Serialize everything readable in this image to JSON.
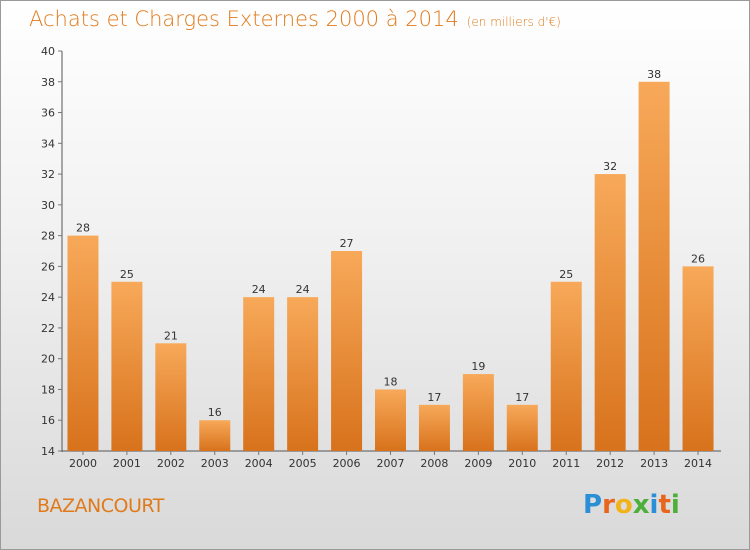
{
  "header": {
    "title": "Achats et Charges Externes 2000 à 2014",
    "unit": "(en milliers d'€)"
  },
  "footer": {
    "town": "BAZANCOURT",
    "logo_letters": [
      "P",
      "r",
      "o",
      "x",
      "i",
      "t",
      "i"
    ],
    "logo_colors": [
      "#2a8fd4",
      "#e8651d",
      "#f2b21a",
      "#4caf3a",
      "#2a8fd4",
      "#e8651d",
      "#4caf3a"
    ]
  },
  "colors": {
    "bar_top": "#f7a959",
    "bar_bottom": "#d8721c",
    "axis": "#555555",
    "grid_tick": "#777777"
  },
  "chart_data": {
    "type": "bar",
    "title": "Achats et Charges Externes 2000 à 2014",
    "subtitle": "(en milliers d'€)",
    "categories": [
      "2000",
      "2001",
      "2002",
      "2003",
      "2004",
      "2005",
      "2006",
      "2007",
      "2008",
      "2009",
      "2010",
      "2011",
      "2012",
      "2013",
      "2014"
    ],
    "values": [
      28,
      25,
      21,
      16,
      24,
      24,
      27,
      18,
      17,
      19,
      17,
      25,
      32,
      38,
      26
    ],
    "ylim": [
      14,
      40
    ],
    "yticks": [
      14,
      16,
      18,
      20,
      22,
      24,
      26,
      28,
      30,
      32,
      34,
      36,
      38,
      40
    ],
    "grid": false,
    "data_labels": true
  }
}
